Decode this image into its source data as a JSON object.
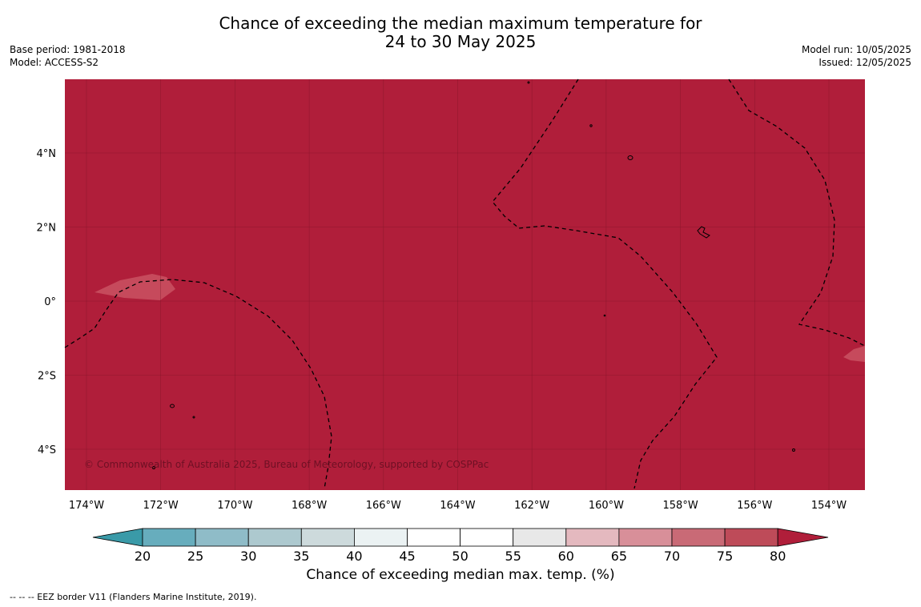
{
  "title": {
    "line1": "Chance of exceeding the median maximum temperature for",
    "line2": "24 to 30 May 2025"
  },
  "meta_left": {
    "base_period": "Base period: 1981-2018",
    "model": "Model: ACCESS-S2"
  },
  "meta_right": {
    "model_run": "Model run: 10/05/2025",
    "issued": "Issued: 12/05/2025"
  },
  "map": {
    "background_color": "#b01e3a",
    "lon_ticks": [
      "174°W",
      "172°W",
      "170°W",
      "168°W",
      "166°W",
      "164°W",
      "162°W",
      "160°W",
      "158°W",
      "156°W",
      "154°W"
    ],
    "lat_ticks": [
      "4°N",
      "2°N",
      "0°",
      "2°S",
      "4°S"
    ],
    "copyright": "© Commonwealth of Australia 2025, Bureau of Meteorology, supported by COSPPac",
    "gridlines": true,
    "eez_border_style": "dashed"
  },
  "colorbar": {
    "labels": [
      "20",
      "25",
      "30",
      "35",
      "40",
      "45",
      "50",
      "55",
      "60",
      "65",
      "70",
      "75",
      "80"
    ],
    "colors": [
      "#3a9aa8",
      "#67adbd",
      "#8fbcc8",
      "#adc9cf",
      "#cddadc",
      "#ebf2f3",
      "#ffffff",
      "#ffffff",
      "#e8e8e8",
      "#e4b9bf",
      "#d88f99",
      "#c96a76",
      "#be4b59",
      "#b01e3a"
    ],
    "title": "Chance of exceeding median max. temp. (%)"
  },
  "footer": "--  --  -- EEZ border V11 (Flanders Marine Institute, 2019)."
}
